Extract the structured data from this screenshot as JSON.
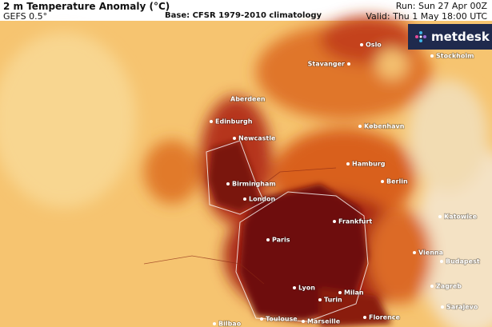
{
  "header": {
    "title": "2 m Temperature Anomaly (°C)",
    "model": "GEFS 0.5°",
    "base": "Base: CFSR 1979-2010 climatology",
    "run": "Run: Sun 27 Apr 00Z",
    "valid": "Valid: Thu 1 May 18:00 UTC"
  },
  "logo": "metdesk",
  "cities": [
    "Oslo",
    "Stavanger",
    "Stockholm",
    "Aberdeen",
    "Edinburgh",
    "Newcastle",
    "København",
    "Hamburg",
    "Berlin",
    "Birmingham",
    "London",
    "Frankfurt",
    "Katowice",
    "Paris",
    "Vienna",
    "Budapest",
    "Lyon",
    "Milan",
    "Zagreb",
    "Turin",
    "Sarajevo",
    "Florence",
    "Bilbao",
    "Toulouse",
    "Marseille"
  ]
}
